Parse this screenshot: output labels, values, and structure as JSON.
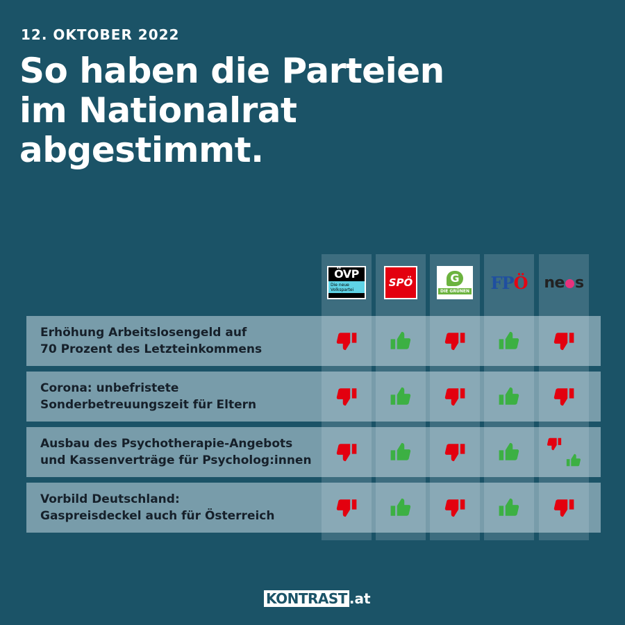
{
  "header": {
    "date": "12. OKTOBER  2022",
    "title_lines": [
      "So haben die Parteien",
      "im Nationalrat",
      "abgestimmt."
    ]
  },
  "parties": [
    {
      "id": "oevp",
      "logo_text": "ÖVP",
      "logo_subtext": "Die neue Volkspartei"
    },
    {
      "id": "spoe",
      "logo_text": "SPÖ"
    },
    {
      "id": "gruene",
      "logo_text": "DIE GRÜNEN",
      "logo_mark": "G"
    },
    {
      "id": "fpoe",
      "logo_text": "FPÖ"
    },
    {
      "id": "neos",
      "logo_text": "neos"
    }
  ],
  "motions": [
    {
      "lines": [
        "Erhöhung Arbeitslosengeld auf",
        "70 Prozent des Letzteinkommens"
      ],
      "votes": [
        "no",
        "yes",
        "no",
        "yes",
        "no"
      ]
    },
    {
      "lines": [
        "Corona: unbefristete",
        "Sonderbetreuungszeit für Eltern"
      ],
      "votes": [
        "no",
        "yes",
        "no",
        "yes",
        "no"
      ]
    },
    {
      "lines": [
        "Ausbau des Psychotherapie-Angebots",
        "und Kassenverträge für Psycholog:innen"
      ],
      "votes": [
        "no",
        "yes",
        "no",
        "yes",
        "mixed"
      ]
    },
    {
      "lines": [
        "Vorbild Deutschland:",
        "Gaspreisdeckel auch für Österreich"
      ],
      "votes": [
        "no",
        "yes",
        "no",
        "yes",
        "no"
      ]
    }
  ],
  "colors": {
    "background": "#1b5367",
    "yes": "#3cb043",
    "no": "#e3000f"
  },
  "footer": {
    "brand": "KONTRAST",
    "suffix": ".at"
  }
}
